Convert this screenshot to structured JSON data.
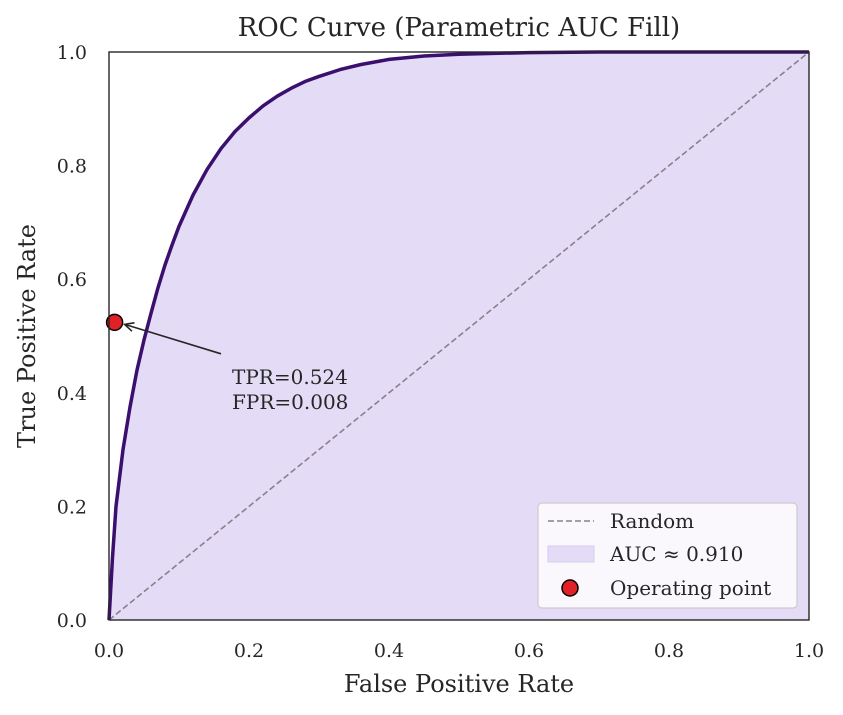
{
  "chart_data": {
    "type": "line",
    "title": "ROC Curve (Parametric AUC Fill)",
    "xlabel": "False Positive Rate",
    "ylabel": "True Positive Rate",
    "xlim": [
      0.0,
      1.0
    ],
    "ylim": [
      0.0,
      1.0
    ],
    "xticks": [
      "0.0",
      "0.2",
      "0.4",
      "0.6",
      "0.8",
      "1.0"
    ],
    "yticks": [
      "0.0",
      "0.2",
      "0.4",
      "0.6",
      "0.8",
      "1.0"
    ],
    "grid": false,
    "legend_position": "lower-right",
    "series": [
      {
        "name": "ROC curve",
        "color": "#3b0f6e",
        "x": [
          0.0,
          0.005,
          0.01,
          0.02,
          0.03,
          0.04,
          0.05,
          0.06,
          0.07,
          0.08,
          0.09,
          0.1,
          0.12,
          0.14,
          0.16,
          0.18,
          0.2,
          0.22,
          0.24,
          0.26,
          0.28,
          0.3,
          0.33,
          0.36,
          0.4,
          0.45,
          0.5,
          0.6,
          0.7,
          0.8,
          0.9,
          1.0
        ],
        "y": [
          0.0,
          0.11,
          0.2,
          0.3,
          0.375,
          0.44,
          0.493,
          0.54,
          0.585,
          0.625,
          0.66,
          0.693,
          0.748,
          0.793,
          0.83,
          0.86,
          0.884,
          0.905,
          0.922,
          0.936,
          0.948,
          0.957,
          0.969,
          0.978,
          0.987,
          0.993,
          0.996,
          0.999,
          1.0,
          1.0,
          1.0,
          1.0
        ]
      },
      {
        "name": "Random",
        "color": "#8a7f8d",
        "style": "dashed",
        "x": [
          0.0,
          1.0
        ],
        "y": [
          0.0,
          1.0
        ]
      }
    ],
    "fill": {
      "name": "AUC ≈ 0.910",
      "color": "#e4dcf6",
      "edge_color": "#d6cbf0"
    },
    "operating_point": {
      "name": "Operating point",
      "fpr": 0.008,
      "tpr": 0.524,
      "color": "#e02127",
      "annotation_lines": [
        "TPR=0.524",
        "FPR=0.008"
      ],
      "annotation_anchor": [
        0.16,
        0.4
      ]
    },
    "legend": [
      {
        "label": "Random",
        "kind": "line"
      },
      {
        "label": "AUC ≈ 0.910",
        "kind": "patch"
      },
      {
        "label": "Operating point",
        "kind": "marker"
      }
    ]
  }
}
